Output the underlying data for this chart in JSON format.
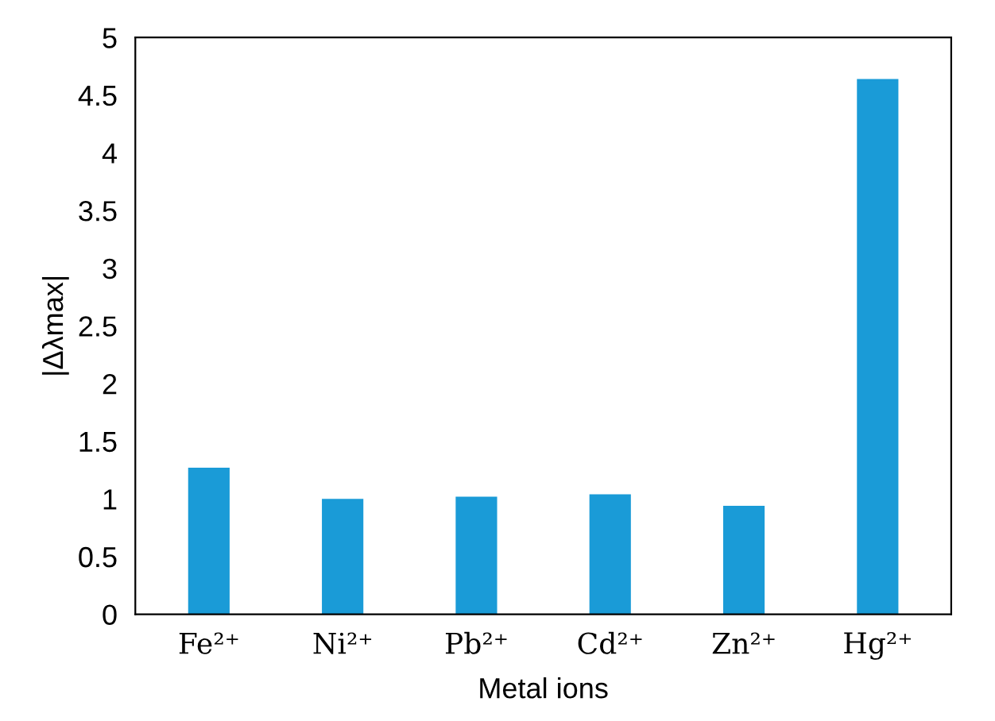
{
  "chart_data": {
    "type": "bar",
    "xlabel": "Metal ions",
    "ylabel": "|Δλmax|",
    "categories": [
      "Fe²⁺",
      "Ni²⁺",
      "Pb²⁺",
      "Cd²⁺",
      "Zn²⁺",
      "Hg²⁺"
    ],
    "values": [
      1.27,
      1.0,
      1.02,
      1.04,
      0.94,
      4.64
    ],
    "color": "#1a9bd7",
    "ylim": [
      0,
      5
    ],
    "yticks": [
      0,
      {
        "value": 0.5,
        "label": "0.5"
      },
      1,
      {
        "value": 1.5,
        "label": "1.5"
      },
      2,
      {
        "value": 2.5,
        "label": "2.5"
      },
      3,
      {
        "value": 3.5,
        "label": "3.5"
      },
      4,
      {
        "value": 4.5,
        "label": "4.5"
      },
      5
    ],
    "grid": false
  }
}
